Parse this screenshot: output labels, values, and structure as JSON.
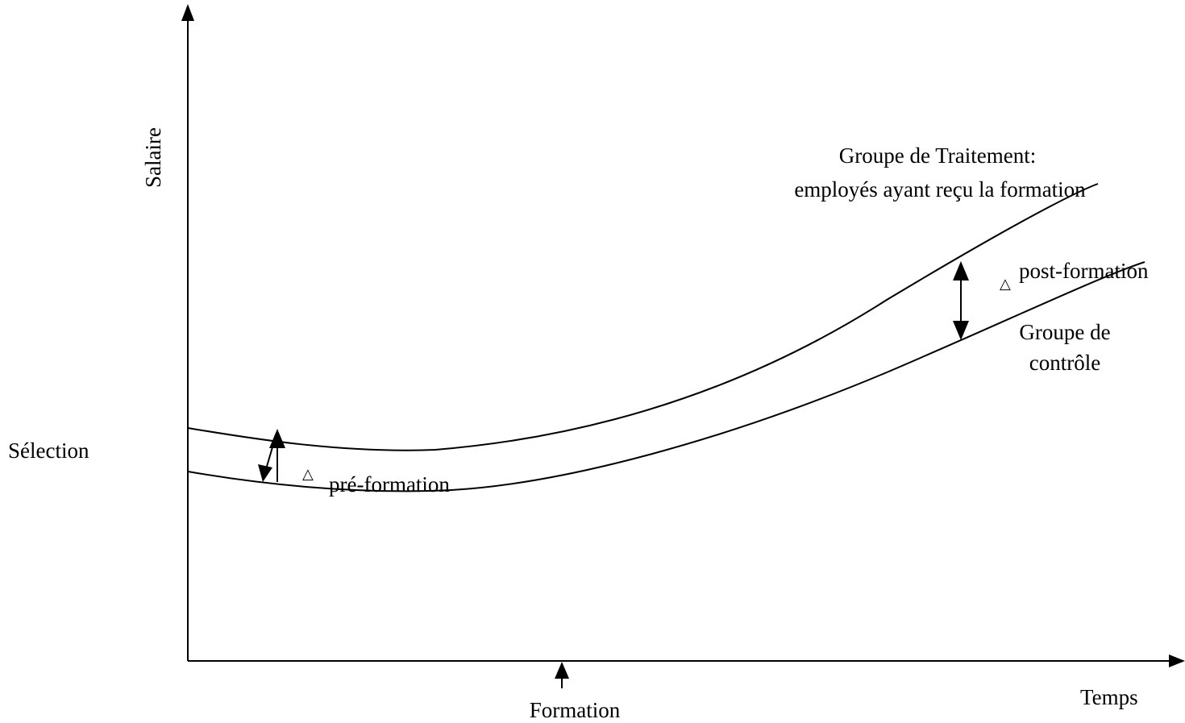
{
  "axes": {
    "y_label": "Salaire",
    "x_label": "Temps",
    "y_marker_label": "Sélection",
    "x_marker_label": "Formation"
  },
  "curves": {
    "treatment_line1": "Groupe de Traitement:",
    "treatment_line2": "employés ayant reçu la formation",
    "control_line1": "Groupe de",
    "control_line2": "contrôle"
  },
  "gaps": {
    "delta_symbol": "△",
    "pre_label": "pré-formation",
    "post_label": "post-formation"
  },
  "colors": {
    "ink": "#000000",
    "background": "#ffffff"
  }
}
